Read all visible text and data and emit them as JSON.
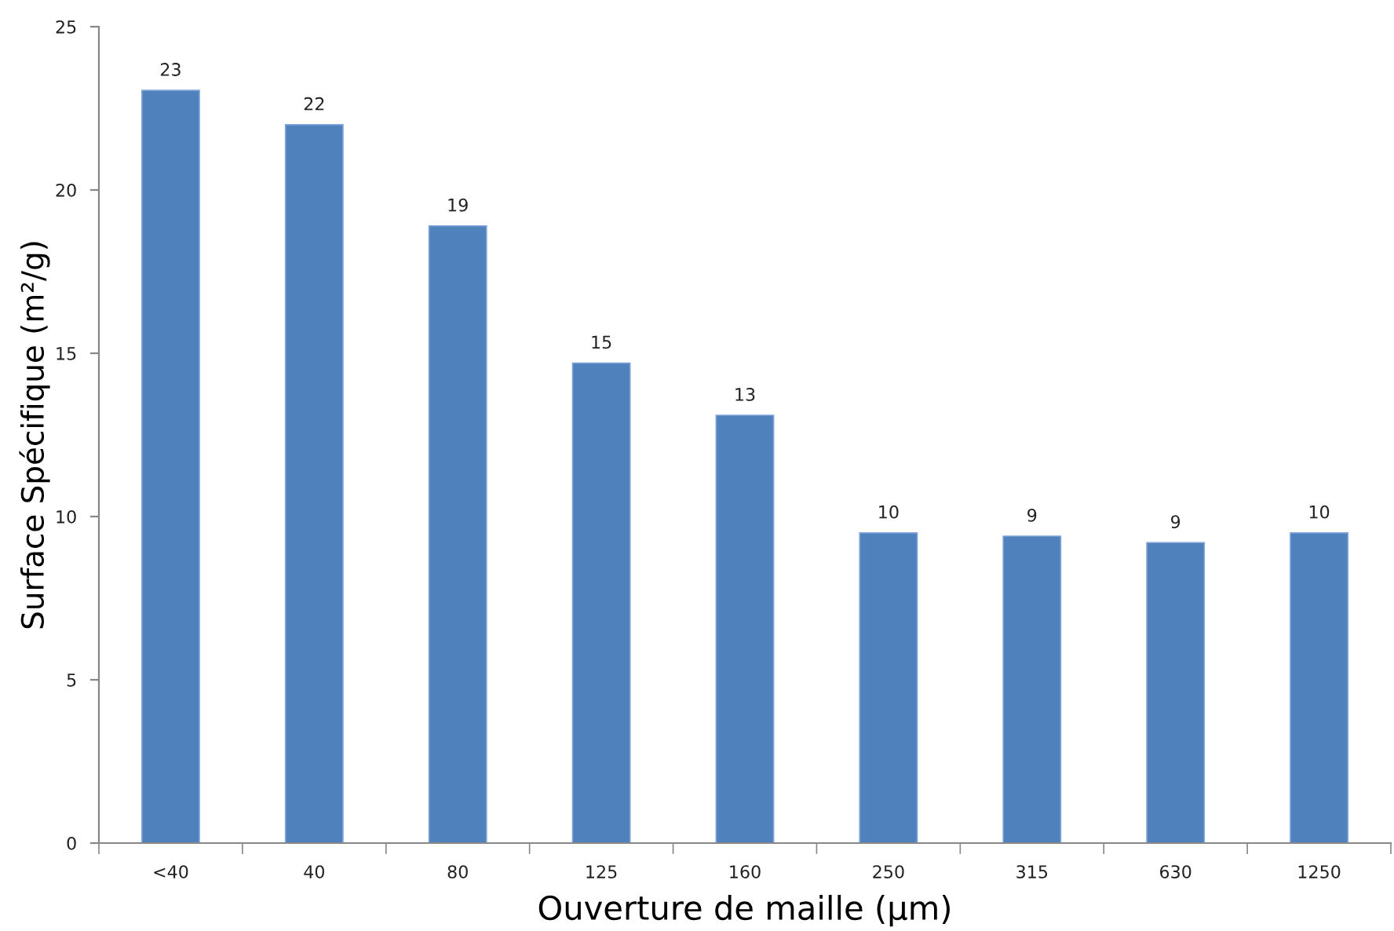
{
  "chart_data": {
    "type": "bar",
    "xlabel": "Ouverture de maille (µm)",
    "ylabel": "Surface Spécifique (m²/g)",
    "categories": [
      "<40",
      "40",
      "80",
      "125",
      "160",
      "250",
      "315",
      "630",
      "1250"
    ],
    "values": [
      23.05,
      22.0,
      18.9,
      14.7,
      13.1,
      9.5,
      9.4,
      9.2,
      9.5
    ],
    "value_labels": [
      "23",
      "22",
      "19",
      "15",
      "13",
      "10",
      "9",
      "9",
      "10"
    ],
    "color": "#4f81bd",
    "ylim": [
      0,
      25
    ],
    "yticks": [
      0,
      5,
      10,
      15,
      20,
      25
    ],
    "grid": false,
    "legend": false
  }
}
